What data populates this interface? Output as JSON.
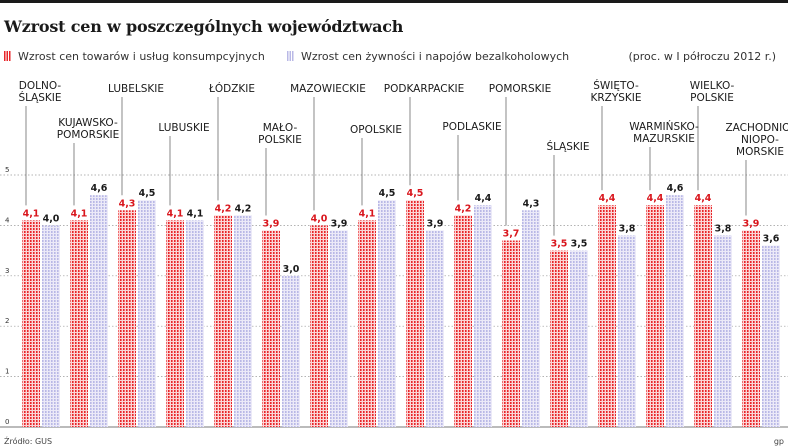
{
  "header": {
    "title": "Wzrost cen w poszczególnych województwach",
    "legend_goods": "Wzrost cen towarów i usług konsumpcyjnych",
    "legend_food": "Wzrost cen żywności i napojów bezalkoholowych",
    "unit_note": "(proc. w I półroczu 2012 r.)"
  },
  "footer": {
    "source": "Źródło: GUS",
    "corner": "gp"
  },
  "colors": {
    "goods": "#e8262a",
    "goods_stripe": "#fbd5d6",
    "food": "#b9b8e6",
    "food_stripe": "#eceaf8",
    "goods_label": "#d9161d",
    "food_label": "#1a1a1a"
  },
  "chart_data": {
    "type": "bar",
    "categories": [
      [
        "DOLNO-",
        "ŚLĄSKIE"
      ],
      [
        "KUJAWSKO-",
        "POMORSKIE"
      ],
      [
        "LUBELSKIE"
      ],
      [
        "LUBUSKIE"
      ],
      [
        "ŁÓDZKIE"
      ],
      [
        "MAŁO-",
        "POLSKIE"
      ],
      [
        "MAZOWIECKIE"
      ],
      [
        "OPOLSKIE"
      ],
      [
        "PODKARPACKIE"
      ],
      [
        "PODLASKIE"
      ],
      [
        "POMORSKIE"
      ],
      [
        "ŚLĄSKIE"
      ],
      [
        "ŚWIĘTO-",
        "KRZYSKIE"
      ],
      [
        "WARMIŃSKO-",
        "MAZURSKIE"
      ],
      [
        "WIELKO-",
        "POLSKIE"
      ],
      [
        "ZACHODNIO-",
        "NIOPO-",
        "MORSKIE"
      ]
    ],
    "series": [
      {
        "name": "Wzrost cen towarów i usług konsumpcyjnych",
        "values": [
          4.1,
          4.1,
          4.3,
          4.1,
          4.2,
          3.9,
          4.0,
          4.1,
          4.5,
          4.2,
          3.7,
          3.5,
          4.4,
          4.4,
          4.4,
          3.9
        ],
        "labels": [
          "4,1",
          "4,1",
          "4,3",
          "4,1",
          "4,2",
          "3,9",
          "4,0",
          "4,1",
          "4,5",
          "4,2",
          "3,7",
          "3,5",
          "4,4",
          "4,4",
          "4,4",
          "3,9"
        ]
      },
      {
        "name": "Wzrost cen żywności i napojów bezalkoholowych",
        "values": [
          4.0,
          4.6,
          4.5,
          4.1,
          4.2,
          3.0,
          3.9,
          4.5,
          3.9,
          4.4,
          4.3,
          3.5,
          3.8,
          4.6,
          3.8,
          3.6
        ],
        "labels": [
          "4,0",
          "4,6",
          "4,5",
          "4,1",
          "4,2",
          "3,0",
          "3,9",
          "4,5",
          "3,9",
          "4,4",
          "4,3",
          "3,5",
          "3,8",
          "4,6",
          "3,8",
          "3,6"
        ]
      }
    ],
    "yticks": [
      "0",
      "1",
      "2",
      "3",
      "4",
      "5"
    ],
    "ylim": [
      0,
      5
    ],
    "grid": true
  }
}
